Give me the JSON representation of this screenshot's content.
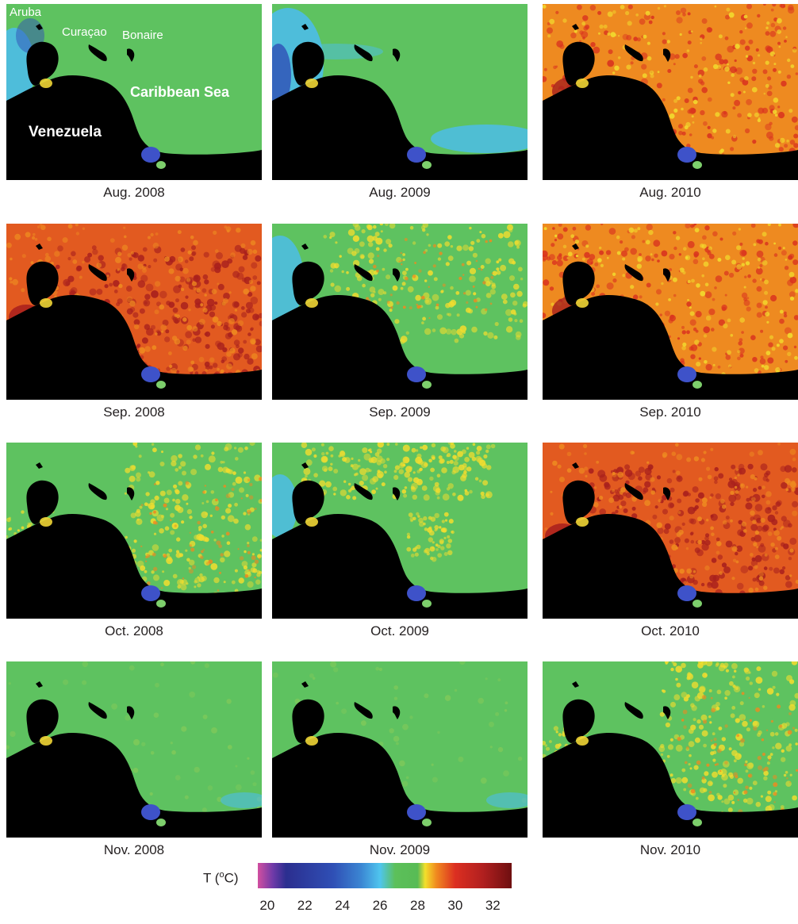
{
  "panels": [
    {
      "caption": "Aug. 2008",
      "regime": "green-cool-west"
    },
    {
      "caption": "Aug. 2009",
      "regime": "green-cool-coast"
    },
    {
      "caption": "Aug. 2010",
      "regime": "warm-orange"
    },
    {
      "caption": "Sep. 2008",
      "regime": "hot-red"
    },
    {
      "caption": "Sep. 2009",
      "regime": "green-yellow"
    },
    {
      "caption": "Sep. 2010",
      "regime": "warm-orange"
    },
    {
      "caption": "Oct. 2008",
      "regime": "green-yellow-east"
    },
    {
      "caption": "Oct. 2009",
      "regime": "green-yellow-north"
    },
    {
      "caption": "Oct. 2010",
      "regime": "hot-red"
    },
    {
      "caption": "Nov. 2008",
      "regime": "green"
    },
    {
      "caption": "Nov. 2009",
      "regime": "green"
    },
    {
      "caption": "Nov. 2010",
      "regime": "green-yellow-east"
    }
  ],
  "map_labels": {
    "aruba": "Aruba",
    "curacao": "Curaçao",
    "bonaire": "Bonaire",
    "sea": "Caribbean Sea",
    "country": "Venezuela"
  },
  "legend": {
    "title": "T (",
    "title_sup": "o",
    "title_unit": "C)",
    "ticks": [
      {
        "value": 20,
        "label": "20"
      },
      {
        "value": 22,
        "label": "22"
      },
      {
        "value": 24,
        "label": "24"
      },
      {
        "value": 26,
        "label": "26"
      },
      {
        "value": 28,
        "label": "28"
      },
      {
        "value": 30,
        "label": "30"
      },
      {
        "value": 32,
        "label": "32"
      }
    ],
    "range": [
      19.5,
      33
    ],
    "colors": [
      {
        "value": 19.5,
        "color": "#d24fa0"
      },
      {
        "value": 20.3,
        "color": "#6f3aa8"
      },
      {
        "value": 21.0,
        "color": "#2b2e8f"
      },
      {
        "value": 23.5,
        "color": "#2f4fb5"
      },
      {
        "value": 25.0,
        "color": "#3b86d3"
      },
      {
        "value": 26.0,
        "color": "#4fc5ee"
      },
      {
        "value": 26.8,
        "color": "#5cc05a"
      },
      {
        "value": 28.0,
        "color": "#58bb55"
      },
      {
        "value": 28.4,
        "color": "#f3e02b"
      },
      {
        "value": 29.0,
        "color": "#f0891f"
      },
      {
        "value": 30.0,
        "color": "#dc2f21"
      },
      {
        "value": 31.5,
        "color": "#b01f1f"
      },
      {
        "value": 33.0,
        "color": "#6e0f10"
      }
    ]
  },
  "palette": {
    "land": "#000000",
    "sea_green": "#5ec260",
    "cool_blue": "#4cbde8",
    "deep_blue": "#2f4fb5",
    "yellow": "#f2dd2e",
    "orange": "#ee8a20",
    "red": "#d9321f",
    "dark_red": "#a81f1d",
    "lake": "#3e52c9"
  }
}
